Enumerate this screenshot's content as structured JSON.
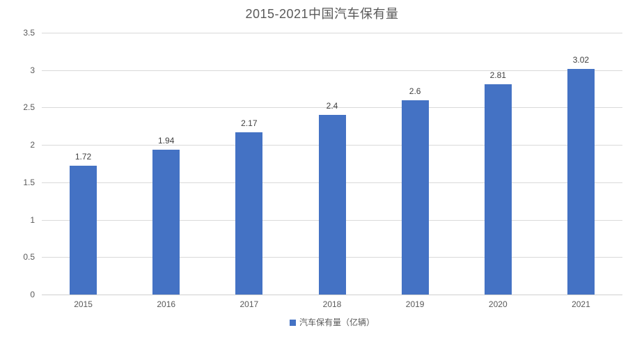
{
  "title": "2015-2021中国汽车保有量",
  "legend": {
    "label": "汽车保有量（亿辆）",
    "marker_color": "#4472c4"
  },
  "colors": {
    "bar": "#4472c4",
    "gridline": "#d9d9d9",
    "axis_line": "#d0d0d0",
    "title_text": "#595959",
    "tick_text": "#595959",
    "data_label_text": "#404040"
  },
  "chart_data": {
    "type": "bar",
    "title": "2015-2021中国汽车保有量",
    "categories": [
      "2015",
      "2016",
      "2017",
      "2018",
      "2019",
      "2020",
      "2021"
    ],
    "series": [
      {
        "name": "汽车保有量（亿辆）",
        "values": [
          1.72,
          1.94,
          2.17,
          2.4,
          2.6,
          2.81,
          3.02
        ],
        "data_labels": [
          "1.72",
          "1.94",
          "2.17",
          "2.4",
          "2.6",
          "2.81",
          "3.02"
        ],
        "color": "#4472c4"
      }
    ],
    "xlabel": "",
    "ylabel": "",
    "ylim": [
      0,
      3.5
    ],
    "ytick_step": 0.5,
    "ytick_labels": [
      "0",
      "0.5",
      "1",
      "1.5",
      "2",
      "2.5",
      "3",
      "3.5"
    ],
    "grid": true,
    "legend_position": "bottom-center",
    "data_labels_shown": true
  }
}
